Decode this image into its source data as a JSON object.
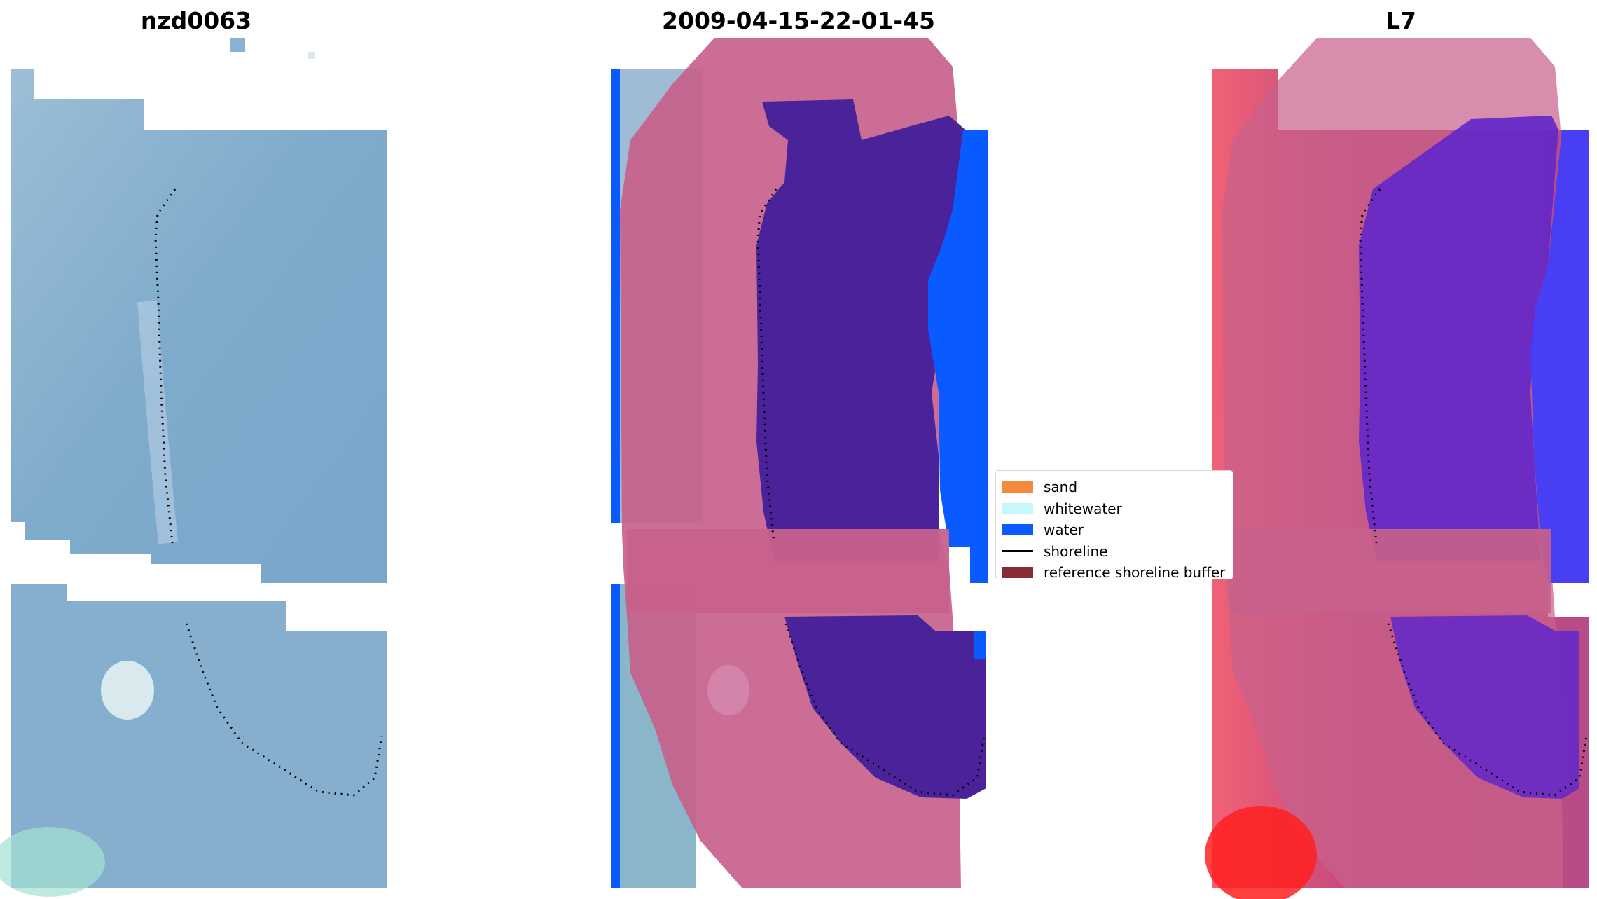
{
  "panels": {
    "left_title": "nzd0063",
    "center_title": "2009-04-15-22-01-45",
    "right_title": "L7"
  },
  "legend": {
    "items": [
      {
        "label": "sand",
        "color": "#f58a3c",
        "kind": "patch"
      },
      {
        "label": "whitewater",
        "color": "#c8f7fa",
        "kind": "patch"
      },
      {
        "label": "water",
        "color": "#0a5bff",
        "kind": "patch"
      },
      {
        "label": "shoreline",
        "color": "#000000",
        "kind": "line"
      },
      {
        "label": "reference shoreline buffer",
        "color": "#8a2a32",
        "kind": "patch"
      }
    ]
  },
  "colors": {
    "rgb_tile": "#7eaacb",
    "buffer": "#c7618b",
    "classified_water": "#4a229a",
    "water": "#0a5bff",
    "index_land": "#ff3b5c",
    "index_water": "#6428c8",
    "shoreline": "#000000"
  }
}
